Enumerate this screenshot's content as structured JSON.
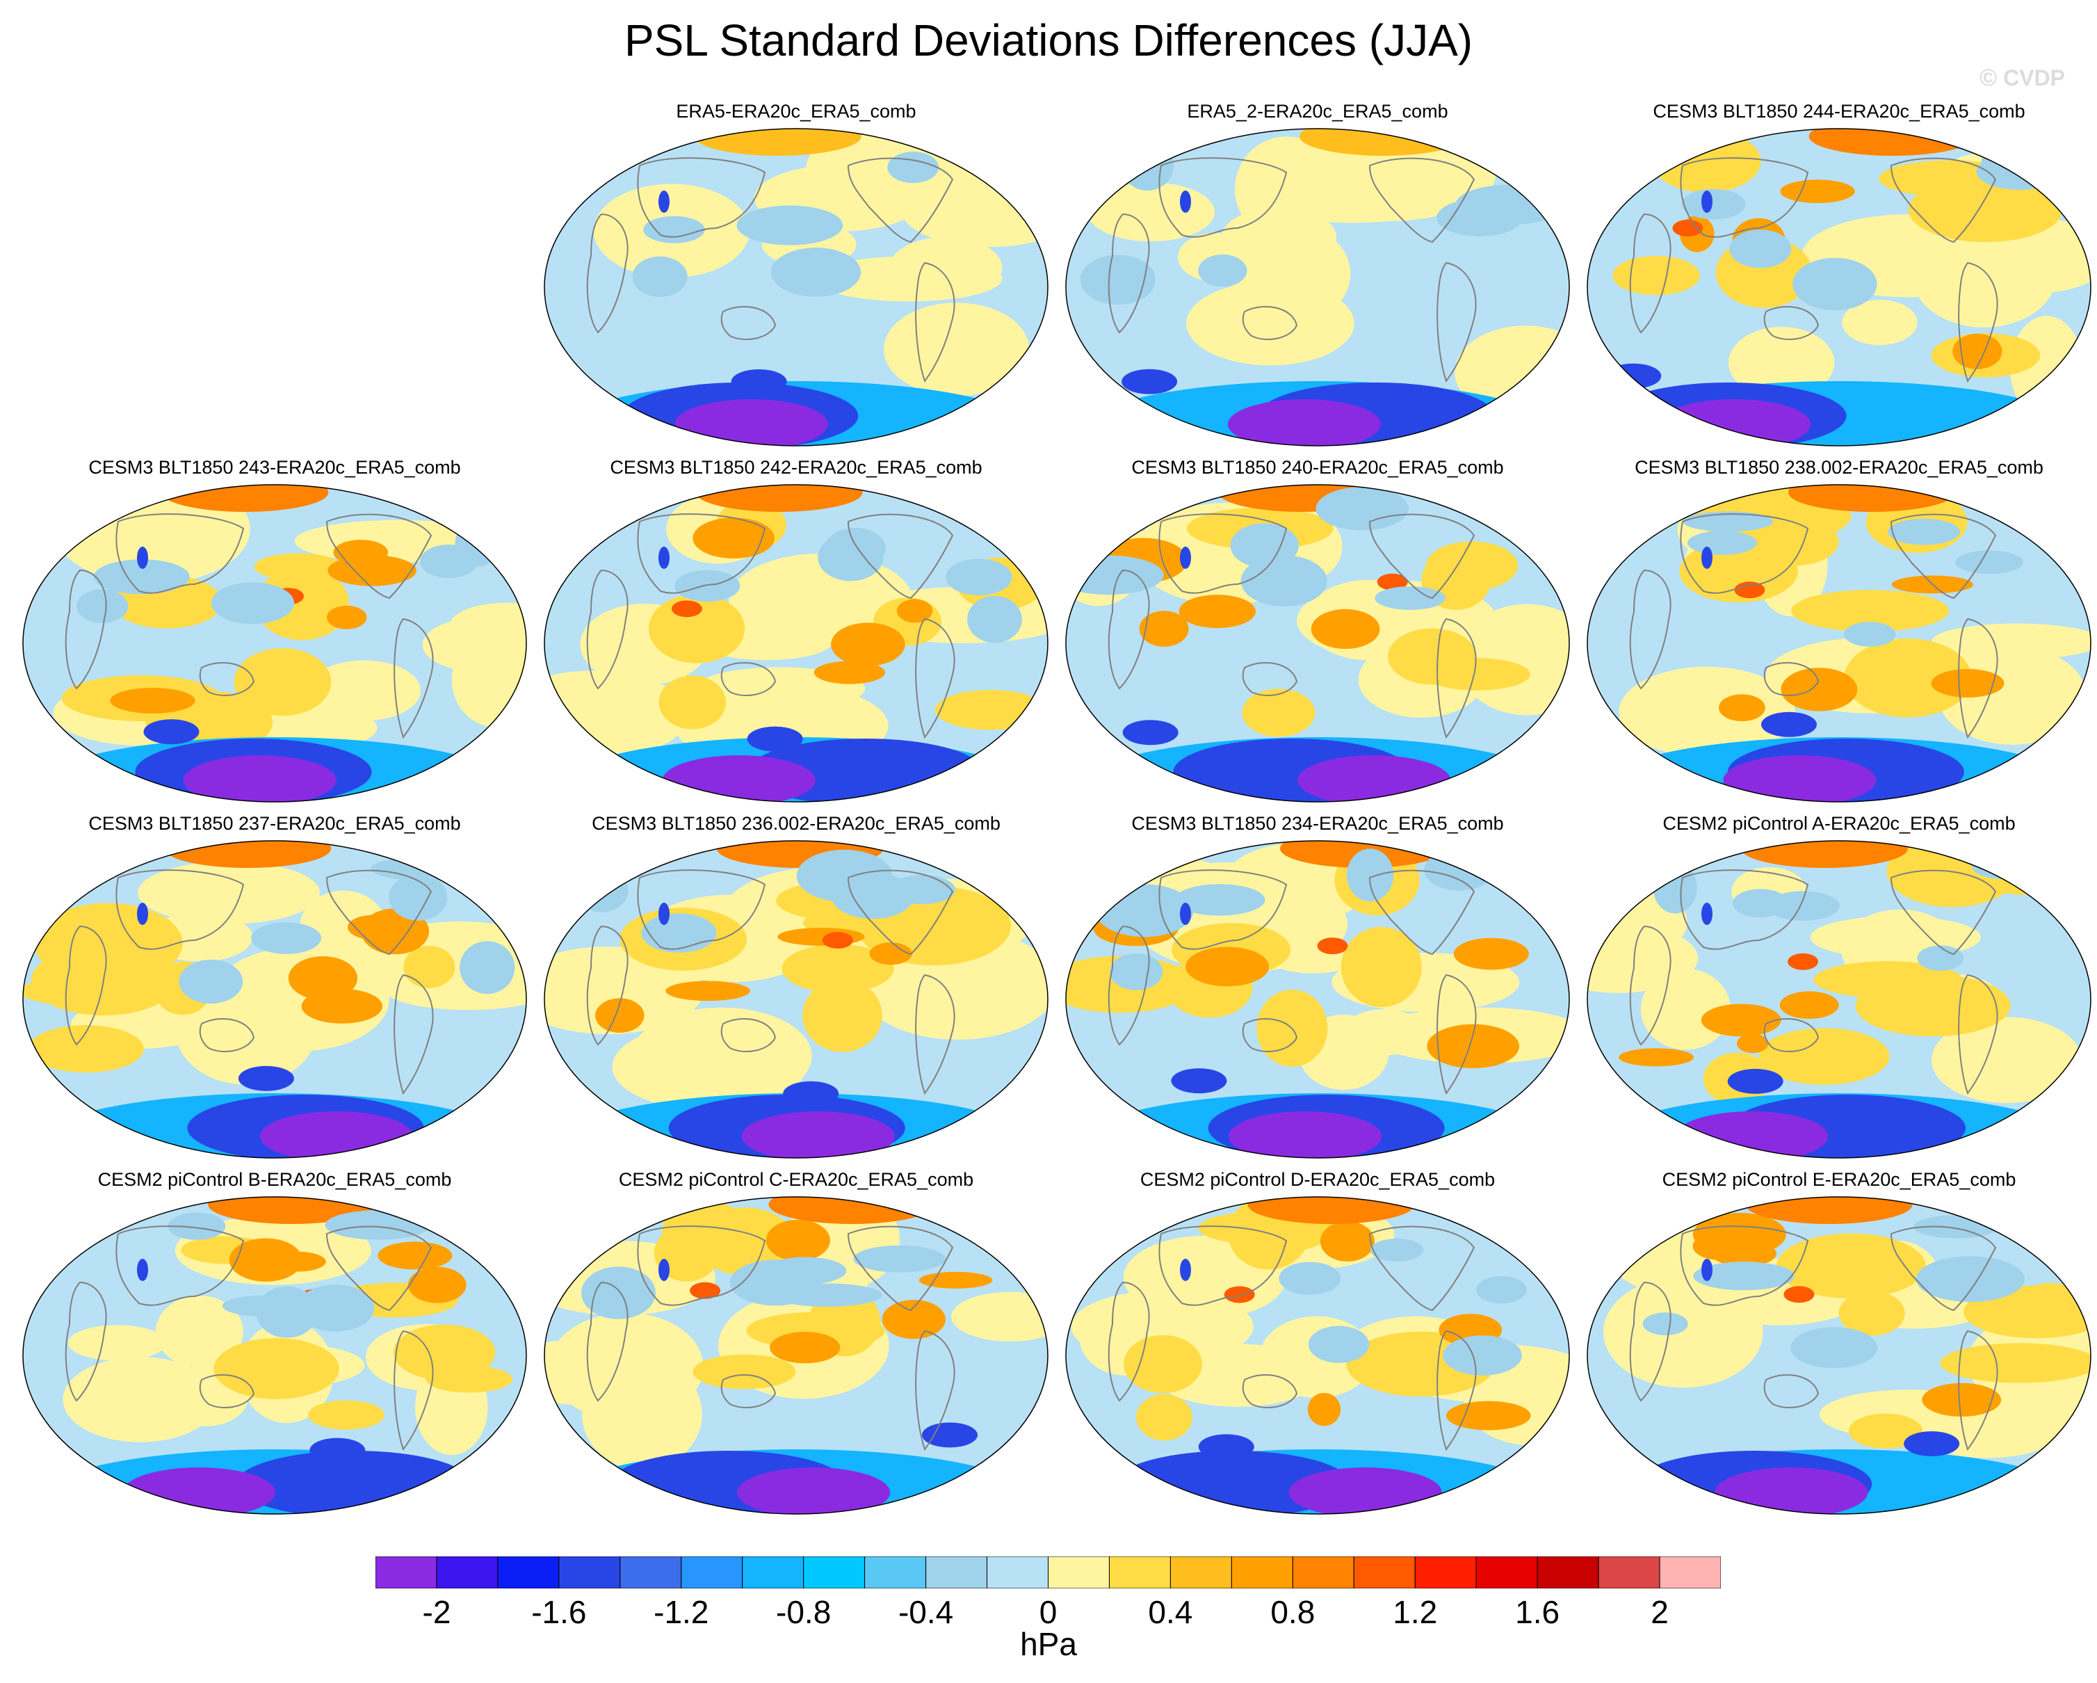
{
  "figure": {
    "title": "PSL Standard Deviations Differences (JJA)",
    "watermark": {
      "symbol": "©",
      "text": "CVDP"
    },
    "units": "hPa"
  },
  "panels": [
    {
      "title": "ERA5-ERA20c_ERA5_comb",
      "row": 0,
      "col": 1
    },
    {
      "title": "ERA5_2-ERA20c_ERA5_comb",
      "row": 0,
      "col": 2
    },
    {
      "title": "CESM3 BLT1850 244-ERA20c_ERA5_comb",
      "row": 0,
      "col": 3
    },
    {
      "title": "CESM3 BLT1850 243-ERA20c_ERA5_comb",
      "row": 1,
      "col": 0
    },
    {
      "title": "CESM3 BLT1850 242-ERA20c_ERA5_comb",
      "row": 1,
      "col": 1
    },
    {
      "title": "CESM3 BLT1850 240-ERA20c_ERA5_comb",
      "row": 1,
      "col": 2
    },
    {
      "title": "CESM3 BLT1850 238.002-ERA20c_ERA5_comb",
      "row": 1,
      "col": 3
    },
    {
      "title": "CESM3 BLT1850 237-ERA20c_ERA5_comb",
      "row": 2,
      "col": 0
    },
    {
      "title": "CESM3 BLT1850 236.002-ERA20c_ERA5_comb",
      "row": 2,
      "col": 1
    },
    {
      "title": "CESM3 BLT1850 234-ERA20c_ERA5_comb",
      "row": 2,
      "col": 2
    },
    {
      "title": "CESM2 piControl A-ERA20c_ERA5_comb",
      "row": 2,
      "col": 3
    },
    {
      "title": "CESM2 piControl B-ERA20c_ERA5_comb",
      "row": 3,
      "col": 0
    },
    {
      "title": "CESM2 piControl C-ERA20c_ERA5_comb",
      "row": 3,
      "col": 1
    },
    {
      "title": "CESM2 piControl D-ERA20c_ERA5_comb",
      "row": 3,
      "col": 2
    },
    {
      "title": "CESM2 piControl E-ERA20c_ERA5_comb",
      "row": 3,
      "col": 3
    }
  ],
  "colorbar": {
    "colors": [
      "#8a2be2",
      "#3c14f0",
      "#0a1ef5",
      "#2846e6",
      "#3c6eeb",
      "#2896ff",
      "#14b4ff",
      "#00c8ff",
      "#5ac8f5",
      "#a0d2eb",
      "#b9e1f5",
      "#fff5a0",
      "#ffdc46",
      "#ffbe1e",
      "#ffa000",
      "#ff8200",
      "#ff5a00",
      "#ff1e00",
      "#e60000",
      "#c80000",
      "#dc4646",
      "#ffb4b4"
    ],
    "tick_labels": [
      "-2",
      "-1.6",
      "-1.2",
      "-0.8",
      "-0.4",
      "0",
      "0.4",
      "0.8",
      "1.2",
      "1.6",
      "2"
    ]
  }
}
